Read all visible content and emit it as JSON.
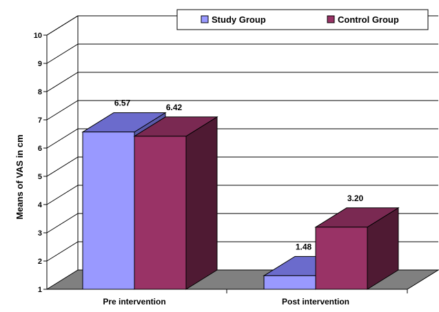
{
  "chart_data": {
    "type": "bar",
    "style": "3d-clustered-column",
    "categories": [
      "Pre intervention",
      "Post intervention"
    ],
    "series": [
      {
        "name": "Study Group",
        "values": [
          6.57,
          1.48
        ],
        "labels": [
          "6.57",
          "1.48"
        ],
        "color": "#9999ff"
      },
      {
        "name": "Control Group",
        "values": [
          6.42,
          3.2
        ],
        "labels": [
          "6.42",
          "3.20"
        ],
        "color": "#993366"
      }
    ],
    "ylabel": "Means of VAS in cm",
    "xlabel": "",
    "ylim": [
      1,
      10
    ],
    "yticks": [
      "1",
      "2",
      "3",
      "4",
      "5",
      "6",
      "7",
      "8",
      "9",
      "10"
    ],
    "grid": true,
    "legend_position": "top-right"
  }
}
